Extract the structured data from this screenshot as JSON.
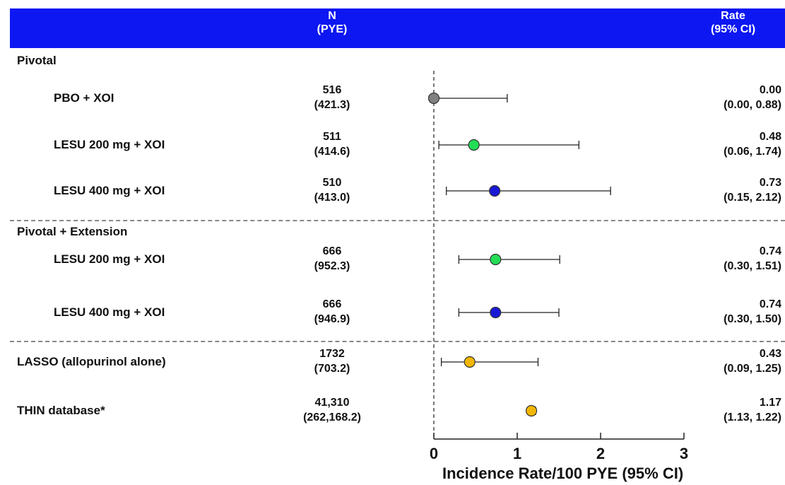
{
  "header": {
    "n_label": "N\n(PYE)",
    "rate_label": "Rate\n(95% CI)"
  },
  "sections": [
    {
      "title": "Pivotal"
    },
    {
      "title": "Pivotal + Extension"
    }
  ],
  "chart_data": {
    "type": "forest",
    "xlabel": "Incidence Rate/100 PYE (95% CI)",
    "xlim": [
      0,
      3
    ],
    "xticks": [
      "0",
      "1",
      "2",
      "3"
    ],
    "reference_line": 0,
    "rows": [
      {
        "label": "PBO  + XOI",
        "n": "516",
        "pye": "(421.3)",
        "rate": "0.00",
        "ci": "(0.00, 0.88)",
        "value": 0.0,
        "low": 0.0,
        "high": 0.88,
        "color": "#808080"
      },
      {
        "label": "LESU  200 mg + XOI",
        "n": "511",
        "pye": "(414.6)",
        "rate": "0.48",
        "ci": "(0.06, 1.74)",
        "value": 0.48,
        "low": 0.06,
        "high": 1.74,
        "color": "#22dd55"
      },
      {
        "label": "LESU  400 mg + XOI",
        "n": "510",
        "pye": "(413.0)",
        "rate": "0.73",
        "ci": "(0.15, 2.12)",
        "value": 0.73,
        "low": 0.15,
        "high": 2.12,
        "color": "#1a1ad6"
      },
      {
        "label": "LESU  200 mg + XOI",
        "n": "666",
        "pye": "(952.3)",
        "rate": "0.74",
        "ci": "(0.30, 1.51)",
        "value": 0.74,
        "low": 0.3,
        "high": 1.51,
        "color": "#22dd55"
      },
      {
        "label": "LESU  400 mg + XOI",
        "n": "666",
        "pye": "(946.9)",
        "rate": "0.74",
        "ci": "(0.30, 1.50)",
        "value": 0.74,
        "low": 0.3,
        "high": 1.5,
        "color": "#1a1ad6"
      },
      {
        "label": "LASSO  (allopurinol alone)",
        "n": "1732",
        "pye": "(703.2)",
        "rate": "0.43",
        "ci": "(0.09, 1.25)",
        "value": 0.43,
        "low": 0.09,
        "high": 1.25,
        "color": "#f2b705"
      },
      {
        "label": "THIN  database*",
        "n": "41,310",
        "pye": "(262,168.2)",
        "rate": "1.17",
        "ci": "(1.13, 1.22)",
        "value": 1.17,
        "low": 1.13,
        "high": 1.22,
        "color": "#f2b705"
      }
    ]
  }
}
